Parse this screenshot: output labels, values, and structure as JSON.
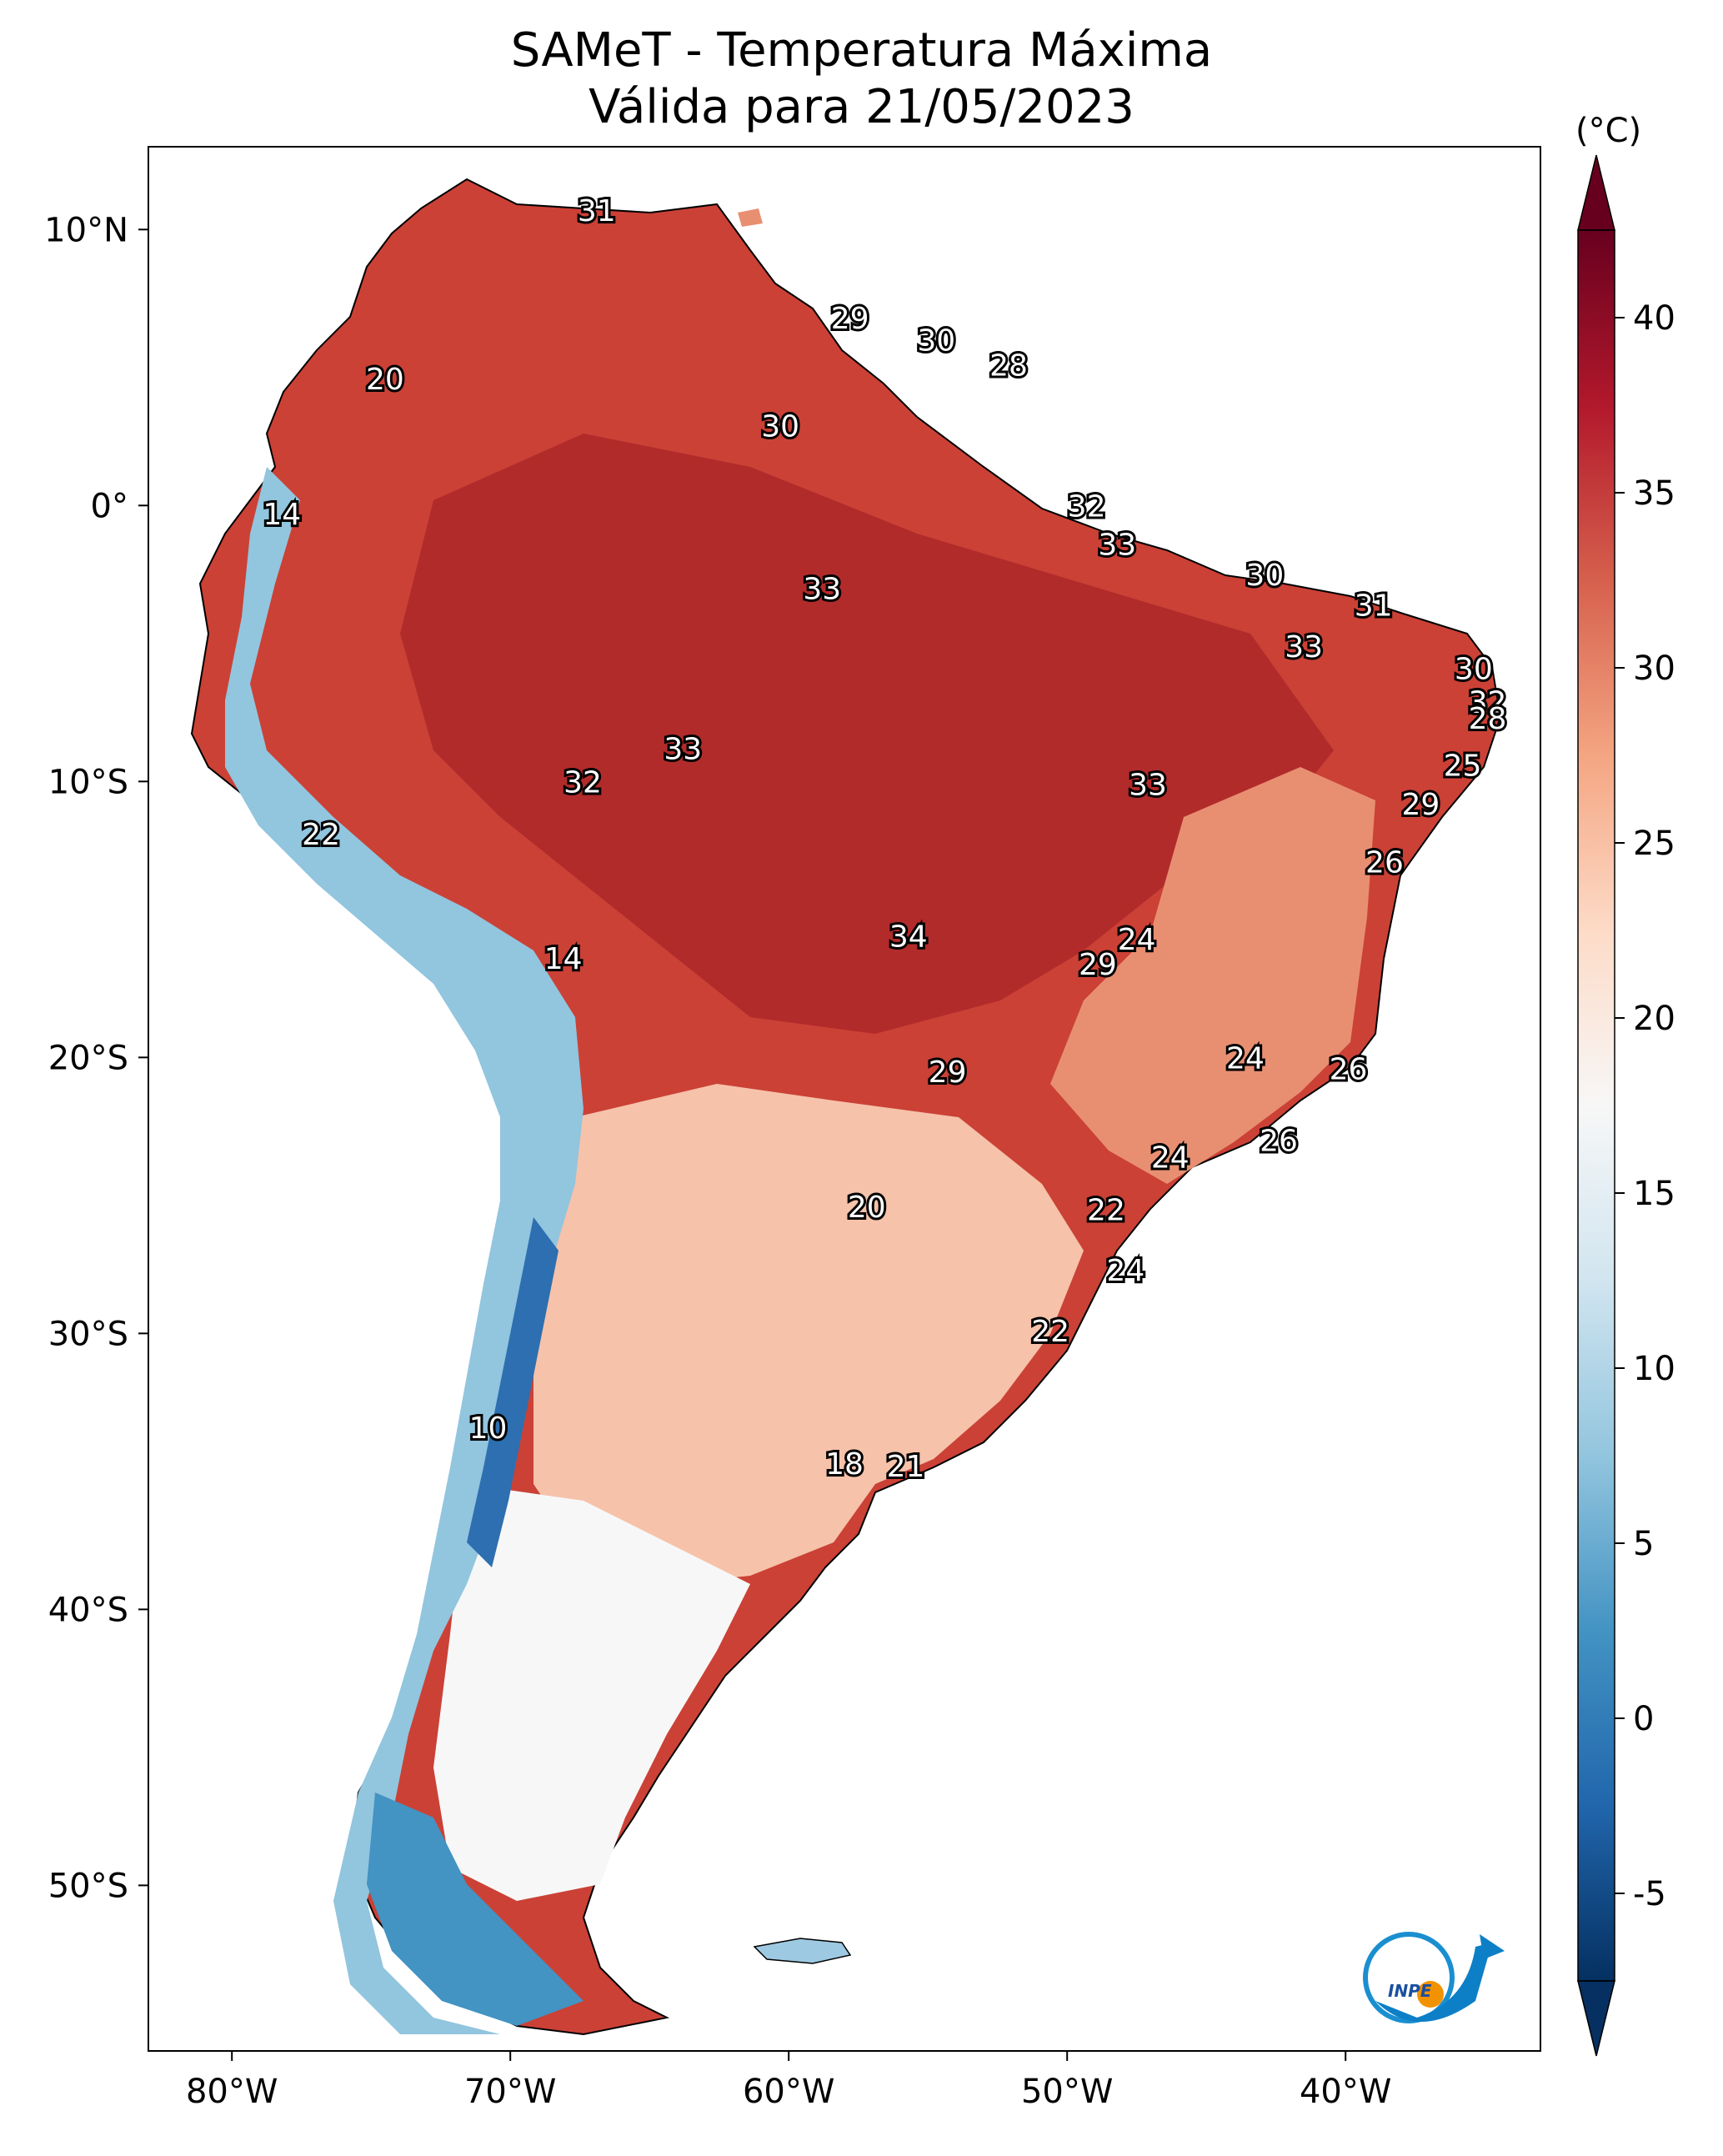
{
  "title_line1": "SAMeT - Temperatura Máxima",
  "title_line2": "Válida para 21/05/2023",
  "colorbar": {
    "unit_label": "(°C)",
    "min": -7.5,
    "max": 42.5,
    "ticks": [
      "40",
      "35",
      "30",
      "25",
      "20",
      "15",
      "10",
      "5",
      "0",
      "-5"
    ],
    "tick_values": [
      40,
      35,
      30,
      25,
      20,
      15,
      10,
      5,
      0,
      -5
    ],
    "colors": [
      "#053061",
      "#2166ac",
      "#4393c3",
      "#92c5de",
      "#d1e5f0",
      "#f7f7f7",
      "#fddbc7",
      "#f4a582",
      "#d6604d",
      "#b2182b",
      "#67001f"
    ]
  },
  "axes": {
    "lon_ticks": [
      "80°W",
      "70°W",
      "60°W",
      "50°W",
      "40°W"
    ],
    "lon_values": [
      -80,
      -70,
      -60,
      -50,
      -40
    ],
    "lat_ticks": [
      "10°N",
      "0°",
      "10°S",
      "20°S",
      "30°S",
      "40°S",
      "50°S"
    ],
    "lat_values": [
      10,
      0,
      -10,
      -20,
      -30,
      -40,
      -50
    ],
    "lon_range": [
      -83,
      -33
    ],
    "lat_range": [
      -56,
      13
    ]
  },
  "logo_text": "INPE",
  "contour_labels": [
    {
      "text": "31",
      "lon": -66.9,
      "lat": 10.7
    },
    {
      "text": "29",
      "lon": -57.8,
      "lat": 6.8
    },
    {
      "text": "30",
      "lon": -54.7,
      "lat": 6.0
    },
    {
      "text": "28",
      "lon": -52.1,
      "lat": 5.1
    },
    {
      "text": "20",
      "lon": -74.5,
      "lat": 4.6
    },
    {
      "text": "30",
      "lon": -60.3,
      "lat": 2.9
    },
    {
      "text": "32",
      "lon": -49.3,
      "lat": 0.0
    },
    {
      "text": "14",
      "lon": -78.2,
      "lat": -0.3
    },
    {
      "text": "33",
      "lon": -48.2,
      "lat": -1.4
    },
    {
      "text": "30",
      "lon": -42.9,
      "lat": -2.5
    },
    {
      "text": "33",
      "lon": -58.8,
      "lat": -3.0
    },
    {
      "text": "31",
      "lon": -39.0,
      "lat": -3.6
    },
    {
      "text": "33",
      "lon": -41.5,
      "lat": -5.1
    },
    {
      "text": "30",
      "lon": -35.4,
      "lat": -5.9
    },
    {
      "text": "32",
      "lon": -34.9,
      "lat": -7.1
    },
    {
      "text": "28",
      "lon": -34.9,
      "lat": -7.7
    },
    {
      "text": "33",
      "lon": -63.8,
      "lat": -8.8
    },
    {
      "text": "25",
      "lon": -35.8,
      "lat": -9.4
    },
    {
      "text": "32",
      "lon": -67.4,
      "lat": -10.0
    },
    {
      "text": "33",
      "lon": -47.1,
      "lat": -10.1
    },
    {
      "text": "29",
      "lon": -37.3,
      "lat": -10.8
    },
    {
      "text": "22",
      "lon": -76.8,
      "lat": -11.9
    },
    {
      "text": "26",
      "lon": -38.6,
      "lat": -12.9
    },
    {
      "text": "34",
      "lon": -55.7,
      "lat": -15.6
    },
    {
      "text": "24",
      "lon": -47.5,
      "lat": -15.7
    },
    {
      "text": "29",
      "lon": -48.9,
      "lat": -16.6
    },
    {
      "text": "14",
      "lon": -68.1,
      "lat": -16.4
    },
    {
      "text": "24",
      "lon": -43.6,
      "lat": -20.0
    },
    {
      "text": "26",
      "lon": -39.9,
      "lat": -20.4
    },
    {
      "text": "29",
      "lon": -54.3,
      "lat": -20.5
    },
    {
      "text": "26",
      "lon": -42.4,
      "lat": -23.0
    },
    {
      "text": "24",
      "lon": -46.3,
      "lat": -23.6
    },
    {
      "text": "20",
      "lon": -57.2,
      "lat": -25.4
    },
    {
      "text": "22",
      "lon": -48.6,
      "lat": -25.5
    },
    {
      "text": "24",
      "lon": -47.9,
      "lat": -27.7
    },
    {
      "text": "22",
      "lon": -50.6,
      "lat": -29.9
    },
    {
      "text": "10",
      "lon": -70.8,
      "lat": -33.4
    },
    {
      "text": "18",
      "lon": -58.0,
      "lat": -34.7
    },
    {
      "text": "21",
      "lon": -55.8,
      "lat": -34.8
    }
  ]
}
